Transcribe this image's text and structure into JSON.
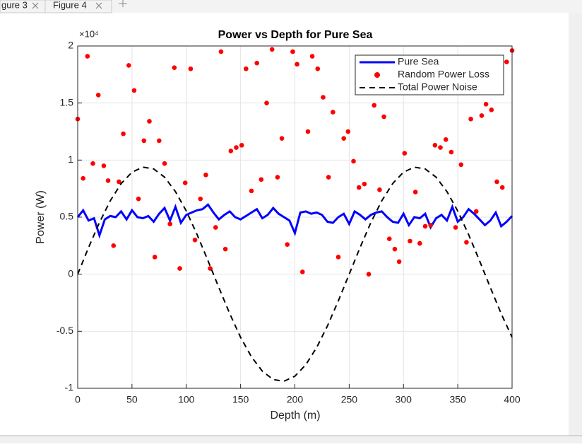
{
  "tabs": [
    "gure 3",
    "Figure 4"
  ],
  "chart_data": {
    "type": "line",
    "title": "Power vs Depth for Pure Sea",
    "x_label": "Depth (m)",
    "y_label": "Power (W)",
    "exponent_label": "×10⁴",
    "xlim": [
      0,
      400
    ],
    "xticks": [
      0,
      50,
      100,
      150,
      200,
      250,
      300,
      350,
      400
    ],
    "ylim": [
      -10000,
      20000
    ],
    "yticks": [
      {
        "value": -10000,
        "label": "-1"
      },
      {
        "value": -5000,
        "label": "-0.5"
      },
      0,
      {
        "value": 5000,
        "label": "0.5"
      },
      {
        "value": 10000,
        "label": "1"
      },
      {
        "value": 15000,
        "label": "1.5"
      },
      {
        "value": 20000,
        "label": "2"
      }
    ],
    "grid": true,
    "legend": "northeast",
    "series": [
      {
        "name": "Pure Sea",
        "color": "#0000ff",
        "style": "solid",
        "x": [
          0,
          5,
          10,
          15,
          20,
          25,
          30,
          35,
          40,
          45,
          50,
          55,
          60,
          65,
          70,
          75,
          80,
          85,
          90,
          95,
          100,
          105,
          110,
          115,
          120,
          125,
          130,
          135,
          140,
          145,
          150,
          155,
          160,
          165,
          170,
          175,
          180,
          185,
          190,
          195,
          200,
          205,
          210,
          215,
          220,
          225,
          230,
          235,
          240,
          245,
          250,
          255,
          260,
          265,
          270,
          275,
          280,
          285,
          290,
          295,
          300,
          305,
          310,
          315,
          320,
          325,
          330,
          335,
          340,
          345,
          350,
          355,
          360,
          365,
          370,
          375,
          380,
          385,
          390,
          395,
          400
        ],
        "values": [
          5000,
          5600,
          4700,
          4900,
          3400,
          4800,
          5100,
          5000,
          5500,
          4800,
          5600,
          5000,
          4900,
          5100,
          4600,
          5300,
          5800,
          4700,
          5900,
          4500,
          5200,
          5400,
          5600,
          5700,
          6100,
          5400,
          4800,
          5200,
          5500,
          5000,
          4800,
          5100,
          5400,
          5700,
          4900,
          5200,
          5800,
          5300,
          5000,
          4700,
          3600,
          5400,
          5500,
          5300,
          5400,
          5200,
          4600,
          4500,
          5000,
          5300,
          4400,
          5500,
          5200,
          4800,
          5200,
          5400,
          5500,
          5000,
          4600,
          4500,
          5300,
          4300,
          5000,
          4900,
          5300,
          4100,
          4900,
          5200,
          4700,
          5900,
          4600,
          5000,
          5700,
          5300,
          4800,
          4300,
          4700,
          5400,
          4200,
          4600,
          5100
        ]
      },
      {
        "name": "Random Power Loss",
        "color": "#ff0000",
        "style": "markers",
        "x": [
          0,
          5,
          9,
          14,
          19,
          24,
          28,
          33,
          38,
          42,
          47,
          52,
          56,
          61,
          66,
          71,
          75,
          80,
          85,
          89,
          94,
          99,
          104,
          108,
          113,
          118,
          122,
          127,
          132,
          136,
          141,
          146,
          151,
          155,
          160,
          165,
          169,
          174,
          179,
          184,
          188,
          193,
          198,
          202,
          207,
          212,
          216,
          221,
          226,
          231,
          235,
          240,
          245,
          249,
          254,
          259,
          264,
          268,
          273,
          278,
          282,
          287,
          292,
          296,
          301,
          306,
          311,
          315,
          320,
          325,
          329,
          334,
          339,
          344,
          348,
          353,
          358,
          362,
          367,
          372,
          376,
          381,
          386,
          391,
          395,
          400
        ],
        "values": [
          13600,
          8400,
          19100,
          9700,
          15700,
          9500,
          8200,
          2500,
          8100,
          12300,
          18300,
          16100,
          6600,
          11700,
          13400,
          1500,
          11700,
          9700,
          4400,
          18100,
          500,
          8000,
          18000,
          3000,
          6600,
          8700,
          500,
          4100,
          19500,
          2200,
          10800,
          11100,
          11300,
          18000,
          7300,
          18500,
          8300,
          15000,
          19700,
          8500,
          11900,
          2600,
          19500,
          18400,
          200,
          12500,
          19100,
          18000,
          15500,
          8500,
          14200,
          1500,
          11900,
          12500,
          9900,
          7600,
          7900,
          0,
          14800,
          7400,
          13800,
          3100,
          2200,
          1100,
          10600,
          2900,
          7200,
          2700,
          4200,
          4300,
          11300,
          11100,
          11800,
          10700,
          4100,
          9600,
          2800,
          13600,
          5500,
          13900,
          14900,
          14400,
          8100,
          7600,
          18600,
          19600
        ]
      },
      {
        "name": "Total Power Noise",
        "color": "#000000",
        "style": "dashed",
        "x": [
          0,
          10,
          20,
          30,
          40,
          50,
          60,
          70,
          80,
          90,
          100,
          110,
          120,
          130,
          140,
          150,
          160,
          170,
          180,
          190,
          200,
          210,
          220,
          230,
          240,
          250,
          260,
          270,
          280,
          290,
          300,
          310,
          320,
          330,
          340,
          350,
          360,
          370,
          380,
          390,
          400
        ],
        "values": [
          0,
          2340,
          4530,
          6430,
          7940,
          8940,
          9380,
          9230,
          8500,
          7240,
          5530,
          3460,
          1180,
          -1180,
          -3460,
          -5530,
          -7240,
          -8500,
          -9230,
          -9380,
          -8940,
          -7940,
          -6430,
          -4530,
          -2340,
          0,
          2340,
          4530,
          6430,
          7940,
          8940,
          9380,
          9230,
          8500,
          7240,
          5530,
          3460,
          1180,
          -1180,
          -3460,
          -5530
        ]
      }
    ]
  }
}
